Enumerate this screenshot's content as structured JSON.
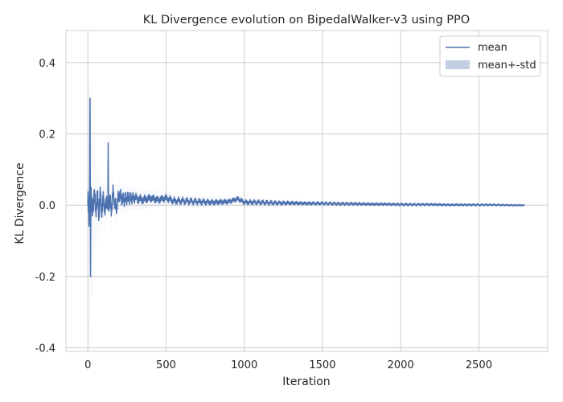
{
  "chart_data": {
    "type": "line",
    "title": "KL Divergence evolution on BipedalWalker-v3 using PPO",
    "xlabel": "Iteration",
    "ylabel": "KL Divergence",
    "xlim": [
      -140,
      2940
    ],
    "ylim": [
      -0.41,
      0.49
    ],
    "xticks": [
      0,
      500,
      1000,
      1500,
      2000,
      2500
    ],
    "xtick_labels": [
      "0",
      "500",
      "1000",
      "1500",
      "2000",
      "2500"
    ],
    "yticks": [
      -0.4,
      -0.2,
      0.0,
      0.2,
      0.4
    ],
    "ytick_labels": [
      "-0.4",
      "-0.2",
      "0.0",
      "0.2",
      "0.4"
    ],
    "grid": true,
    "legend": {
      "position": "top-right",
      "entries": [
        "mean",
        "mean+-std"
      ]
    },
    "colors": {
      "line": "#4c72b0",
      "band": "#c2cfe3",
      "grid": "#cccccc"
    },
    "series": [
      {
        "name": "mean",
        "x": [
          0,
          5,
          10,
          14,
          17,
          20,
          30,
          40,
          50,
          60,
          70,
          80,
          90,
          100,
          110,
          120,
          128,
          130,
          132,
          140,
          150,
          160,
          180,
          200,
          225,
          250,
          300,
          350,
          400,
          450,
          500,
          550,
          600,
          700,
          800,
          900,
          960,
          1000,
          1100,
          1200,
          1300,
          1400,
          1500,
          1600,
          1700,
          1800,
          1900,
          2000,
          2100,
          2200,
          2300,
          2400,
          2500,
          2600,
          2700,
          2790
        ],
        "y": [
          0.0,
          0.02,
          -0.05,
          0.3,
          -0.2,
          0.05,
          -0.03,
          0.04,
          -0.02,
          0.03,
          -0.025,
          0.03,
          -0.02,
          0.025,
          -0.02,
          0.02,
          -0.01,
          0.175,
          -0.01,
          0.02,
          -0.015,
          0.035,
          -0.01,
          0.03,
          0.015,
          0.02,
          0.02,
          0.015,
          0.02,
          0.015,
          0.02,
          0.012,
          0.012,
          0.01,
          0.008,
          0.01,
          0.018,
          0.008,
          0.008,
          0.006,
          0.006,
          0.005,
          0.005,
          0.004,
          0.004,
          0.003,
          0.003,
          0.002,
          0.002,
          0.002,
          0.001,
          0.001,
          0.001,
          0.001,
          0.0,
          0.0
        ]
      }
    ],
    "noise_envelope": {
      "x": [
        0,
        50,
        100,
        200,
        300,
        500,
        700,
        1000,
        1500,
        2000,
        2500,
        2790
      ],
      "amplitude": [
        0.05,
        0.035,
        0.028,
        0.022,
        0.016,
        0.012,
        0.01,
        0.008,
        0.005,
        0.004,
        0.003,
        0.002
      ]
    },
    "band": {
      "x": [
        0,
        20,
        50,
        100,
        200,
        300,
        500,
        1000,
        2000,
        2790
      ],
      "half_width": [
        0.4,
        0.3,
        0.1,
        0.06,
        0.04,
        0.03,
        0.02,
        0.012,
        0.006,
        0.004
      ]
    }
  }
}
